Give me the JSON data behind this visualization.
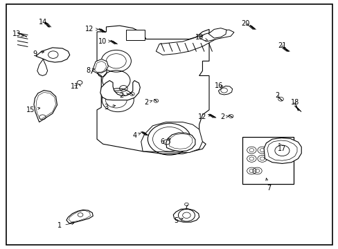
{
  "background_color": "#ffffff",
  "line_color": "#000000",
  "fig_width": 4.89,
  "fig_height": 3.6,
  "dpi": 100,
  "labels": [
    {
      "num": "1",
      "xt": 0.17,
      "yt": 0.085,
      "xa": 0.22,
      "ya": 0.098,
      "ha": "right"
    },
    {
      "num": "2",
      "xt": 0.355,
      "yt": 0.62,
      "xa": 0.385,
      "ya": 0.628,
      "ha": "center"
    },
    {
      "num": "2",
      "xt": 0.43,
      "yt": 0.59,
      "xa": 0.455,
      "ya": 0.6,
      "ha": "center"
    },
    {
      "num": "2",
      "xt": 0.66,
      "yt": 0.53,
      "xa": 0.685,
      "ya": 0.535,
      "ha": "center"
    },
    {
      "num": "3",
      "xt": 0.31,
      "yt": 0.57,
      "xa": 0.345,
      "ya": 0.58,
      "ha": "right"
    },
    {
      "num": "4",
      "xt": 0.395,
      "yt": 0.455,
      "xa": 0.42,
      "ya": 0.468,
      "ha": "center"
    },
    {
      "num": "5",
      "xt": 0.52,
      "yt": 0.105,
      "xa": 0.548,
      "ya": 0.118,
      "ha": "center"
    },
    {
      "num": "6",
      "xt": 0.48,
      "yt": 0.43,
      "xa": 0.51,
      "ya": 0.445,
      "ha": "right"
    },
    {
      "num": "7",
      "xt": 0.8,
      "yt": 0.24,
      "xa": 0.79,
      "ya": 0.29,
      "ha": "right"
    },
    {
      "num": "8",
      "xt": 0.255,
      "yt": 0.72,
      "xa": 0.282,
      "ya": 0.73,
      "ha": "right"
    },
    {
      "num": "9",
      "xt": 0.095,
      "yt": 0.79,
      "xa": 0.13,
      "ya": 0.8,
      "ha": "right"
    },
    {
      "num": "10",
      "xt": 0.298,
      "yt": 0.84,
      "xa": 0.325,
      "ya": 0.842,
      "ha": "center"
    },
    {
      "num": "11",
      "xt": 0.215,
      "yt": 0.655,
      "xa": 0.228,
      "ya": 0.668,
      "ha": "center"
    },
    {
      "num": "12",
      "xt": 0.26,
      "yt": 0.89,
      "xa": 0.293,
      "ya": 0.89,
      "ha": "center"
    },
    {
      "num": "12",
      "xt": 0.6,
      "yt": 0.53,
      "xa": 0.626,
      "ya": 0.54,
      "ha": "center"
    },
    {
      "num": "13",
      "xt": 0.04,
      "yt": 0.87,
      "xa": 0.062,
      "ya": 0.862,
      "ha": "right"
    },
    {
      "num": "14",
      "xt": 0.12,
      "yt": 0.92,
      "xa": 0.138,
      "ya": 0.908,
      "ha": "center"
    },
    {
      "num": "15",
      "xt": 0.082,
      "yt": 0.56,
      "xa": 0.112,
      "ya": 0.568,
      "ha": "right"
    },
    {
      "num": "16",
      "xt": 0.65,
      "yt": 0.66,
      "xa": 0.668,
      "ya": 0.655,
      "ha": "left"
    },
    {
      "num": "17",
      "xt": 0.84,
      "yt": 0.4,
      "xa": 0.83,
      "ya": 0.425,
      "ha": "left"
    },
    {
      "num": "18",
      "xt": 0.878,
      "yt": 0.59,
      "xa": 0.882,
      "ya": 0.572,
      "ha": "left"
    },
    {
      "num": "19",
      "xt": 0.59,
      "yt": 0.858,
      "xa": 0.616,
      "ya": 0.845,
      "ha": "right"
    },
    {
      "num": "20",
      "xt": 0.73,
      "yt": 0.915,
      "xa": 0.745,
      "ya": 0.9,
      "ha": "center"
    },
    {
      "num": "21",
      "xt": 0.84,
      "yt": 0.822,
      "xa": 0.848,
      "ya": 0.808,
      "ha": "left"
    },
    {
      "num": "2",
      "xt": 0.825,
      "yt": 0.618,
      "xa": 0.836,
      "ya": 0.602,
      "ha": "center"
    }
  ],
  "border_color": "#000000",
  "border_linewidth": 1.2
}
